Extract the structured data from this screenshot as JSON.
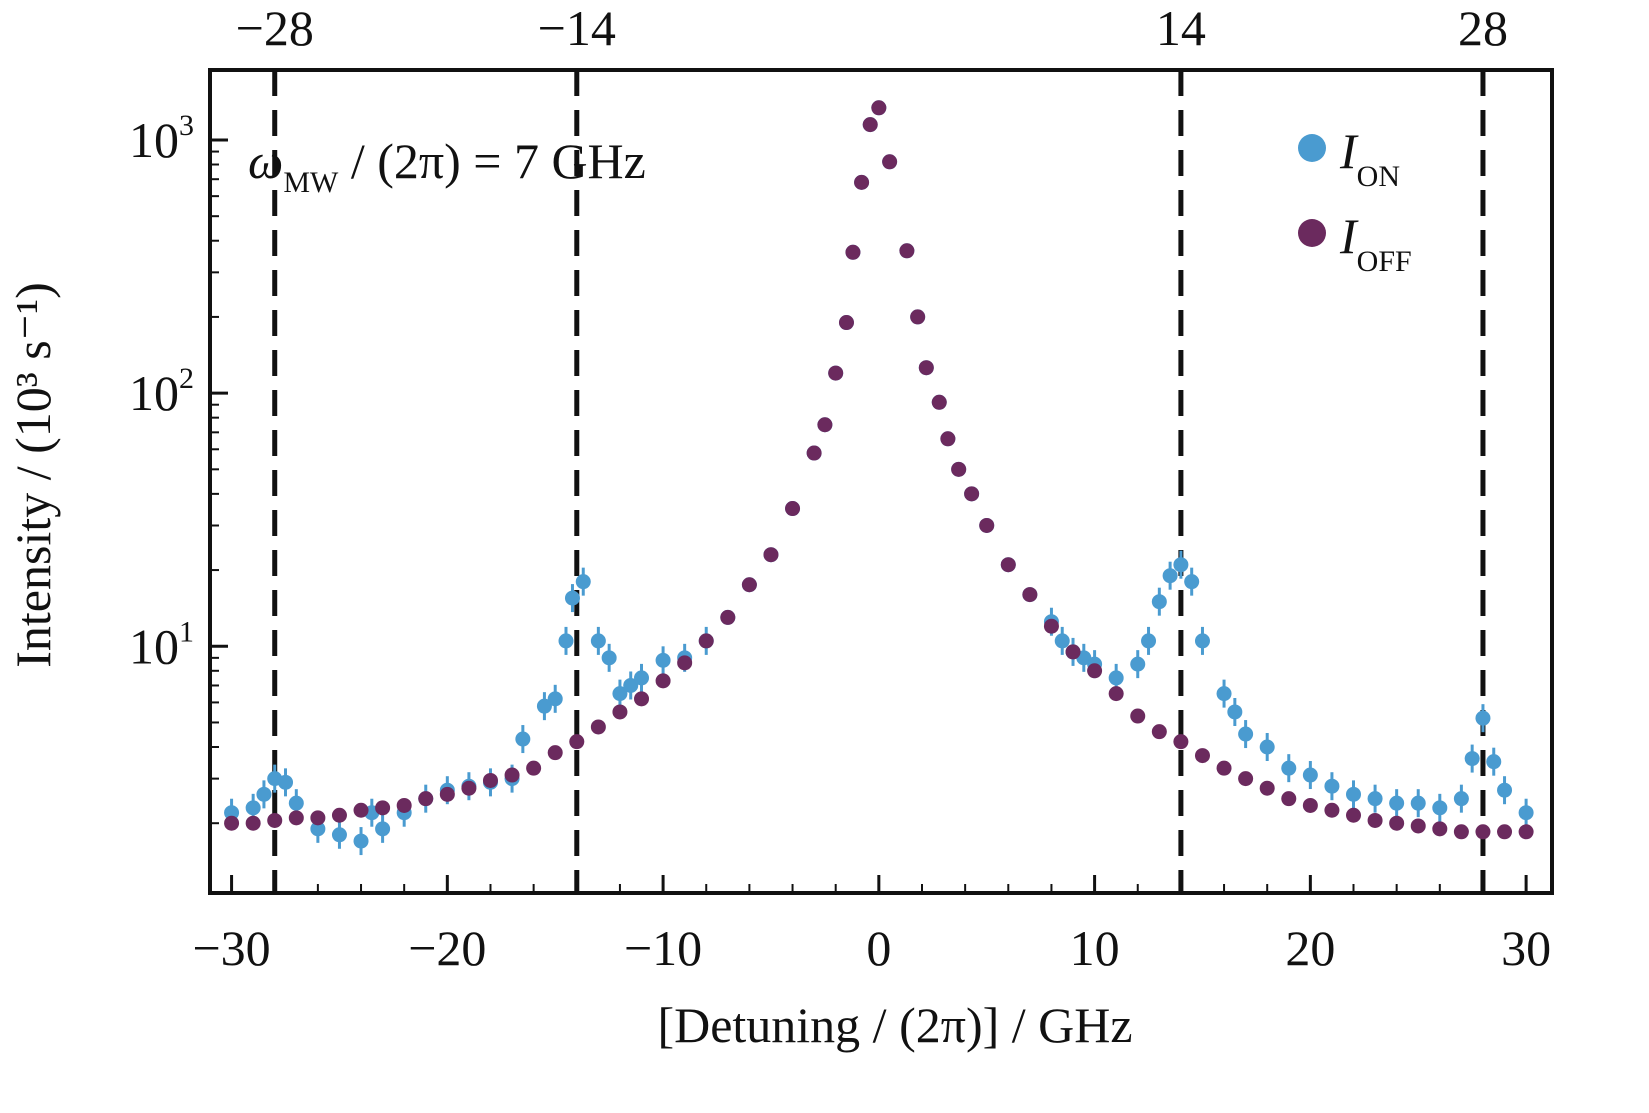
{
  "chart_data": {
    "type": "scatter",
    "xlabel": "[Detuning / (2π)] / GHz",
    "ylabel": "Intensity / (10³ s⁻¹)",
    "annotation": {
      "symbol": "ω",
      "subscript": "MW",
      "rest": " / (2π) = 7 GHz"
    },
    "xlim": [
      -31,
      31.2
    ],
    "ylim": [
      1.06,
      1890
    ],
    "yscale": "log",
    "x_ticks": [
      "-30",
      "-20",
      "-10",
      "0",
      "10",
      "20",
      "30"
    ],
    "x_tick_values": [
      -30,
      -20,
      -10,
      0,
      10,
      20,
      30
    ],
    "top_ticks": [
      "-28",
      "-14",
      "14",
      "28"
    ],
    "top_tick_values": [
      -28,
      -14,
      14,
      28
    ],
    "y_ticks": [
      {
        "base": "10",
        "exp": "1",
        "value": 10
      },
      {
        "base": "10",
        "exp": "2",
        "value": 100
      },
      {
        "base": "10",
        "exp": "3",
        "value": 1000
      }
    ],
    "vlines": [
      -28,
      -14,
      14,
      28
    ],
    "legend": {
      "placement": "top-right"
    },
    "colors": {
      "on": "#4a9bd0",
      "off": "#6b2a5e",
      "vline": "#111111"
    },
    "series": [
      {
        "name": "I",
        "sub": "ON",
        "key": "on",
        "x": [
          -30,
          -29,
          -28.5,
          -28,
          -27.5,
          -27,
          -26,
          -25,
          -24,
          -23.5,
          -23,
          -22,
          -21,
          -20,
          -19,
          -18,
          -17,
          -16.5,
          -15.5,
          -15,
          -14.5,
          -14.2,
          -13.7,
          -13,
          -12.5,
          -12,
          -11.5,
          -11,
          -10,
          -9,
          -8,
          -7,
          -6,
          -5,
          -4,
          -3,
          -2.5,
          -2,
          -1.5,
          -1.2,
          -0.8,
          -0.4,
          0,
          0.5,
          1.3,
          1.8,
          2.2,
          2.8,
          3.2,
          3.7,
          4.3,
          5,
          6,
          7,
          8,
          8.5,
          9,
          9.5,
          10,
          11,
          12,
          12.5,
          13,
          13.5,
          14,
          14.5,
          15,
          16,
          16.5,
          17,
          18,
          19,
          20,
          21,
          22,
          23,
          24,
          25,
          26,
          27,
          27.5,
          28,
          28.5,
          29,
          30
        ],
        "y": [
          2.2,
          2.3,
          2.6,
          3.0,
          2.9,
          2.4,
          1.9,
          1.8,
          1.7,
          2.2,
          1.9,
          2.2,
          2.5,
          2.7,
          2.8,
          2.9,
          3.0,
          4.3,
          5.8,
          6.2,
          10.5,
          15.5,
          18,
          10.5,
          9,
          6.5,
          7,
          7.5,
          8.8,
          9,
          10.5,
          13,
          17.5,
          23,
          35,
          58,
          75,
          120,
          190,
          360,
          680,
          1150,
          1340,
          820,
          365,
          200,
          126,
          92,
          66,
          50,
          40,
          30,
          21,
          16,
          12.5,
          10.5,
          9.5,
          9,
          8.5,
          7.5,
          8.5,
          10.5,
          15,
          19,
          21,
          18,
          10.5,
          6.5,
          5.5,
          4.5,
          4,
          3.3,
          3.1,
          2.8,
          2.6,
          2.5,
          2.4,
          2.4,
          2.3,
          2.5,
          3.6,
          5.2,
          3.5,
          2.7,
          2.2
        ]
      },
      {
        "name": "I",
        "sub": "OFF",
        "key": "off",
        "x": [
          -30,
          -29,
          -28,
          -27,
          -26,
          -25,
          -24,
          -23,
          -22,
          -21,
          -20,
          -19,
          -18,
          -17,
          -16,
          -15,
          -14,
          -13,
          -12,
          -11,
          -10,
          -9,
          -8,
          -7,
          -6,
          -5,
          -4,
          -3,
          -2.5,
          -2,
          -1.5,
          -1.2,
          -0.8,
          -0.4,
          0,
          0.5,
          1.3,
          1.8,
          2.2,
          2.8,
          3.2,
          3.7,
          4.3,
          5,
          6,
          7,
          8,
          9,
          10,
          11,
          12,
          13,
          14,
          15,
          16,
          17,
          18,
          19,
          20,
          21,
          22,
          23,
          24,
          25,
          26,
          27,
          28,
          29,
          30
        ],
        "y": [
          2.0,
          2.0,
          2.05,
          2.1,
          2.1,
          2.15,
          2.25,
          2.3,
          2.35,
          2.5,
          2.6,
          2.75,
          2.95,
          3.1,
          3.3,
          3.8,
          4.2,
          4.8,
          5.5,
          6.2,
          7.3,
          8.6,
          10.5,
          13,
          17.5,
          23,
          35,
          58,
          75,
          120,
          190,
          360,
          680,
          1150,
          1340,
          820,
          365,
          200,
          126,
          92,
          66,
          50,
          40,
          30,
          21,
          16,
          12,
          9.5,
          8,
          6.5,
          5.3,
          4.6,
          4.2,
          3.7,
          3.3,
          3.0,
          2.75,
          2.5,
          2.35,
          2.25,
          2.15,
          2.05,
          2.0,
          1.95,
          1.9,
          1.85,
          1.85,
          1.85,
          1.85
        ]
      }
    ]
  }
}
